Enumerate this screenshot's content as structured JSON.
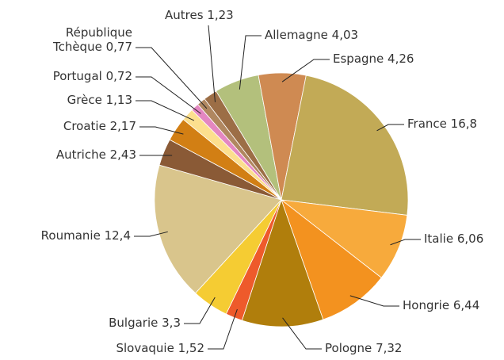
{
  "chart_data": {
    "type": "pie",
    "categories": [
      "Allemagne",
      "Espagne",
      "France",
      "Italie",
      "Hongrie",
      "Pologne",
      "Slovaquie",
      "Bulgarie",
      "Roumanie",
      "Autriche",
      "Croatie",
      "Grèce",
      "Portugal",
      "République Tchèque",
      "Autres"
    ],
    "values": [
      4.03,
      4.26,
      16.8,
      6.06,
      6.44,
      7.32,
      1.52,
      3.3,
      12.4,
      2.43,
      2.17,
      1.13,
      0.72,
      0.77,
      1.23
    ],
    "value_labels": [
      "4,03",
      "4,26",
      "16,8",
      "6,06",
      "6,44",
      "7,32",
      "1,52",
      "3,3",
      "12,4",
      "2,43",
      "2,17",
      "1,13",
      "0,72",
      "0,77",
      "1,23"
    ],
    "colors": [
      "#b3c07c",
      "#cf8a52",
      "#c2aa56",
      "#f7aa3c",
      "#f3921f",
      "#b07e0c",
      "#ee5a2b",
      "#f5cc33",
      "#d9c58c",
      "#8a5a36",
      "#d27f14",
      "#fcdf8e",
      "#e487c2",
      "#b08760",
      "#9c6e46"
    ]
  }
}
